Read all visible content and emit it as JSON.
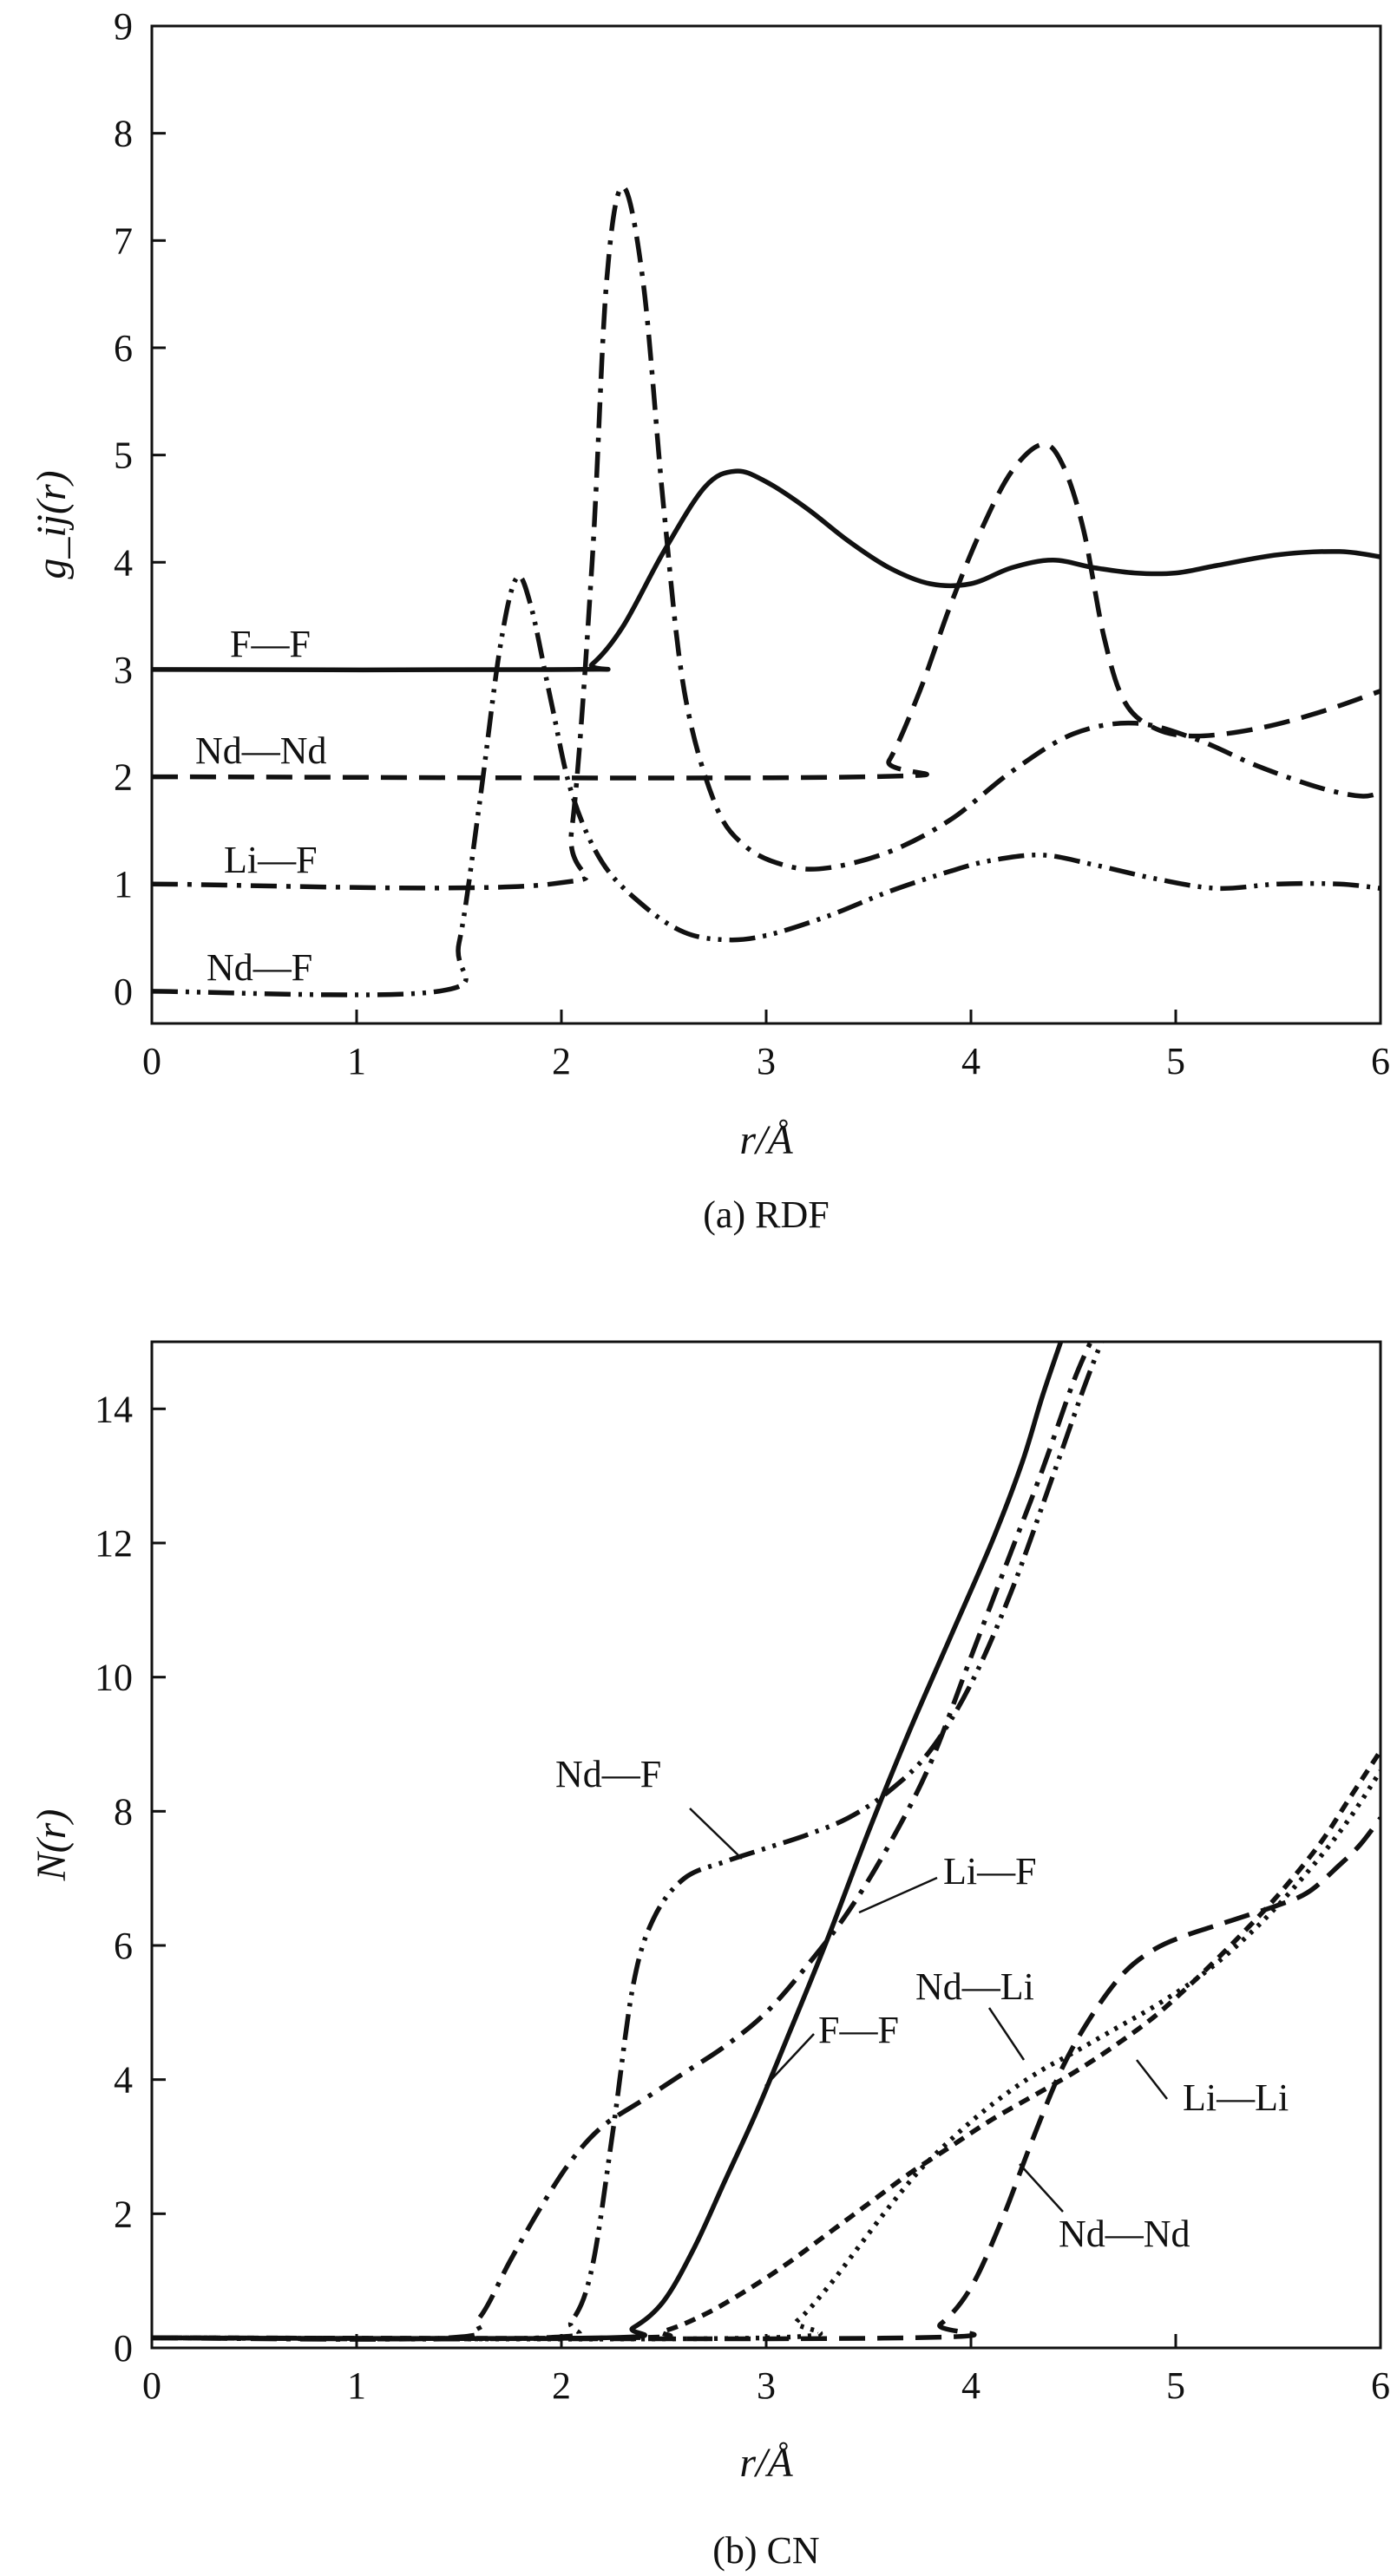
{
  "chart_data": [
    {
      "type": "line",
      "caption": "(a) RDF",
      "xlabel": "r/Å",
      "ylabel": "g_ij(r)",
      "xlim": [
        0,
        6
      ],
      "ylim": [
        -0.3,
        9
      ],
      "xticks": [
        "0",
        "1",
        "2",
        "3",
        "4",
        "5",
        "6"
      ],
      "yticks": [
        "0",
        "1",
        "2",
        "3",
        "4",
        "5",
        "6",
        "7",
        "8",
        "9"
      ],
      "grid": false,
      "series": [
        {
          "name": "F—F",
          "line_style": "solid",
          "x": [
            0,
            2.05,
            2.15,
            2.3,
            2.5,
            2.7,
            2.85,
            3.0,
            3.2,
            3.4,
            3.6,
            3.8,
            4.0,
            4.2,
            4.4,
            4.6,
            4.8,
            5.0,
            5.2,
            5.5,
            5.8,
            6.0
          ],
          "y": [
            3,
            3,
            3.05,
            3.4,
            4.1,
            4.7,
            4.85,
            4.75,
            4.5,
            4.2,
            3.95,
            3.8,
            3.8,
            3.95,
            4.02,
            3.95,
            3.9,
            3.9,
            3.97,
            4.07,
            4.1,
            4.05
          ]
        },
        {
          "name": "Nd—Nd",
          "line_style": "dashed",
          "x": [
            0,
            3.5,
            3.6,
            3.75,
            3.9,
            4.05,
            4.2,
            4.35,
            4.45,
            4.55,
            4.65,
            4.75,
            4.9,
            5.1,
            5.4,
            5.7,
            6.0
          ],
          "y": [
            2,
            2,
            2.15,
            2.8,
            3.6,
            4.3,
            4.85,
            5.1,
            4.9,
            4.3,
            3.3,
            2.7,
            2.45,
            2.38,
            2.45,
            2.6,
            2.8
          ]
        },
        {
          "name": "Li—F",
          "line_style": "dash-dot",
          "x": [
            0,
            1.95,
            2.05,
            2.15,
            2.22,
            2.3,
            2.4,
            2.5,
            2.6,
            2.75,
            2.9,
            3.1,
            3.3,
            3.6,
            3.9,
            4.2,
            4.5,
            4.8,
            5.1,
            5.4,
            5.7,
            5.9,
            6.0
          ],
          "y": [
            1,
            1,
            1.5,
            4.0,
            6.6,
            7.5,
            6.6,
            4.5,
            2.8,
            1.75,
            1.35,
            1.17,
            1.15,
            1.3,
            1.6,
            2.05,
            2.4,
            2.5,
            2.35,
            2.1,
            1.9,
            1.82,
            1.85
          ]
        },
        {
          "name": "Nd—F",
          "line_style": "dash-dot-dot",
          "x": [
            0,
            1.4,
            1.5,
            1.6,
            1.7,
            1.78,
            1.85,
            1.95,
            2.05,
            2.2,
            2.4,
            2.6,
            2.8,
            3.0,
            3.3,
            3.6,
            3.9,
            4.1,
            4.35,
            4.6,
            4.9,
            5.2,
            5.5,
            5.8,
            6.0
          ],
          "y": [
            0,
            0,
            0.45,
            1.75,
            3.2,
            3.85,
            3.6,
            2.7,
            1.85,
            1.2,
            0.8,
            0.55,
            0.48,
            0.52,
            0.7,
            0.93,
            1.12,
            1.22,
            1.27,
            1.18,
            1.05,
            0.96,
            1.0,
            1.0,
            0.96
          ]
        }
      ]
    },
    {
      "type": "line",
      "caption": "(b) CN",
      "xlabel": "r/Å",
      "ylabel": "N(r)",
      "xlim": [
        0,
        6
      ],
      "ylim": [
        0,
        15
      ],
      "xticks": [
        "0",
        "1",
        "2",
        "3",
        "4",
        "5",
        "6"
      ],
      "yticks": [
        "0",
        "2",
        "4",
        "6",
        "8",
        "10",
        "12",
        "14"
      ],
      "grid": false,
      "series": [
        {
          "name": "F—F",
          "line_style": "solid",
          "x": [
            0,
            2.2,
            2.35,
            2.5,
            2.65,
            2.8,
            2.95,
            3.1,
            3.3,
            3.5,
            3.7,
            3.9,
            4.1,
            4.25,
            4.35,
            4.45
          ],
          "y": [
            0.15,
            0.15,
            0.3,
            0.7,
            1.5,
            2.5,
            3.5,
            4.6,
            6.1,
            7.7,
            9.2,
            10.6,
            12.0,
            13.2,
            14.2,
            15.1
          ]
        },
        {
          "name": "Li—F",
          "line_style": "dash-dot",
          "x": [
            0,
            1.45,
            1.6,
            1.75,
            1.9,
            2.05,
            2.2,
            2.4,
            2.6,
            2.8,
            3.0,
            3.2,
            3.4,
            3.6,
            3.8,
            4.0,
            4.2,
            4.35,
            4.5,
            4.6
          ],
          "y": [
            0.15,
            0.15,
            0.45,
            1.3,
            2.1,
            2.8,
            3.3,
            3.7,
            4.1,
            4.5,
            5.0,
            5.7,
            6.5,
            7.5,
            8.7,
            10.3,
            11.9,
            13.1,
            14.4,
            15.1
          ]
        },
        {
          "name": "Nd—F",
          "line_style": "dash-dot-dot",
          "x": [
            0,
            1.9,
            2.05,
            2.15,
            2.25,
            2.35,
            2.45,
            2.6,
            2.8,
            3.0,
            3.2,
            3.4,
            3.6,
            3.8,
            4.0,
            4.2,
            4.4,
            4.55,
            4.65
          ],
          "y": [
            0.15,
            0.15,
            0.4,
            1.2,
            3.2,
            5.4,
            6.4,
            7.0,
            7.25,
            7.45,
            7.65,
            7.9,
            8.3,
            8.9,
            9.9,
            11.3,
            13.0,
            14.3,
            15.1
          ]
        },
        {
          "name": "Nd—Nd",
          "line_style": "dashed",
          "x": [
            0,
            3.7,
            3.85,
            4.0,
            4.15,
            4.3,
            4.45,
            4.6,
            4.75,
            4.9,
            5.05,
            5.2,
            5.35,
            5.5,
            5.65,
            5.8,
            5.9,
            6.0
          ],
          "y": [
            0.15,
            0.15,
            0.35,
            0.9,
            1.9,
            3.1,
            4.2,
            5.0,
            5.6,
            5.95,
            6.15,
            6.3,
            6.45,
            6.6,
            6.8,
            7.2,
            7.5,
            7.9
          ]
        },
        {
          "name": "Li—Li",
          "line_style": "dashed-short",
          "x": [
            0,
            2.3,
            2.5,
            2.7,
            2.9,
            3.1,
            3.3,
            3.5,
            3.7,
            3.9,
            4.1,
            4.3,
            4.5,
            4.7,
            4.9,
            5.1,
            5.3,
            5.5,
            5.7,
            5.85,
            6.0
          ],
          "y": [
            0.15,
            0.15,
            0.25,
            0.5,
            0.85,
            1.25,
            1.7,
            2.15,
            2.6,
            3.0,
            3.4,
            3.75,
            4.1,
            4.5,
            4.95,
            5.5,
            6.1,
            6.75,
            7.5,
            8.2,
            8.9
          ]
        },
        {
          "name": "Nd—Li",
          "line_style": "dotted",
          "x": [
            0,
            3.0,
            3.15,
            3.3,
            3.45,
            3.6,
            3.75,
            3.9,
            4.05,
            4.2,
            4.35,
            4.5,
            4.7,
            4.9,
            5.1,
            5.3,
            5.5,
            5.7,
            5.85,
            6.0
          ],
          "y": [
            0.15,
            0.15,
            0.4,
            0.9,
            1.5,
            2.1,
            2.65,
            3.1,
            3.5,
            3.85,
            4.15,
            4.4,
            4.75,
            5.1,
            5.5,
            6.0,
            6.6,
            7.3,
            7.9,
            8.6
          ]
        }
      ]
    }
  ]
}
